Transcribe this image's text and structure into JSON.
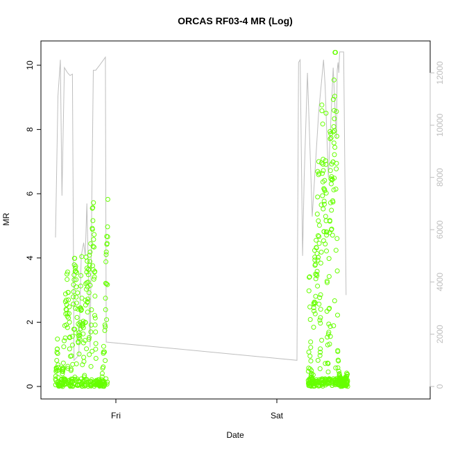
{
  "chart_data": {
    "type": "scatter",
    "title": "ORCAS RF03-4 MR (Log)",
    "xlabel": "Date",
    "ylabel": "MR",
    "x_tick_labels": [
      "Fri",
      "Sat"
    ],
    "ylim": [
      0,
      10.5
    ],
    "y_ticks": [
      0,
      2,
      4,
      6,
      8,
      10
    ],
    "y2lim": [
      0,
      12500
    ],
    "y2_ticks": [
      0,
      2000,
      4000,
      6000,
      8000,
      10000,
      12000
    ],
    "xlim": [
      -0.413,
      1.473
    ],
    "x_ticks": [
      0,
      1
    ],
    "grid": false,
    "legend": "none",
    "colors": {
      "mr_points": "#66ff00",
      "secondary_line": "#bebebe",
      "axis": "#000000"
    },
    "series": [
      {
        "axis": "left",
        "mark": "open-circle",
        "segments": [
          {
            "x_start": -0.375,
            "x_end": -0.05,
            "samples": [
              [
                0.0,
                0.2
              ],
              [
                0.04,
                1.5
              ],
              [
                0.06,
                0.05
              ],
              [
                0.1,
                0.05
              ],
              [
                0.15,
                0.8
              ],
              [
                0.2,
                3.0
              ],
              [
                0.25,
                3.5
              ],
              [
                0.28,
                1.0
              ],
              [
                0.3,
                0.5
              ],
              [
                0.35,
                3.6
              ],
              [
                0.4,
                3.8
              ],
              [
                0.45,
                1.5
              ],
              [
                0.5,
                4.0
              ],
              [
                0.55,
                0.5
              ],
              [
                0.58,
                4.2
              ],
              [
                0.62,
                3.2
              ],
              [
                0.66,
                4.5
              ],
              [
                0.7,
                5.5
              ],
              [
                0.72,
                5.9
              ],
              [
                0.75,
                3.5
              ],
              [
                0.78,
                0.2
              ],
              [
                0.83,
                0.05
              ],
              [
                0.88,
                0.05
              ],
              [
                0.92,
                1.2
              ],
              [
                0.95,
                2.0
              ],
              [
                0.97,
                4.5
              ],
              [
                1.0,
                5.5
              ]
            ]
          },
          {
            "x_start": 1.195,
            "x_end": 1.44,
            "samples": [
              [
                0.0,
                0.3
              ],
              [
                0.03,
                4.6
              ],
              [
                0.06,
                1.5
              ],
              [
                0.09,
                0.3
              ],
              [
                0.12,
                0.2
              ],
              [
                0.15,
                3.5
              ],
              [
                0.2,
                5.0
              ],
              [
                0.25,
                6.5
              ],
              [
                0.28,
                7.2
              ],
              [
                0.3,
                0.4
              ],
              [
                0.35,
                9.7
              ],
              [
                0.4,
                5.5
              ],
              [
                0.45,
                8.0
              ],
              [
                0.5,
                0.5
              ],
              [
                0.55,
                7.5
              ],
              [
                0.6,
                6.8
              ],
              [
                0.65,
                9.5
              ],
              [
                0.7,
                10.4
              ],
              [
                0.72,
                8.5
              ],
              [
                0.75,
                1.0
              ],
              [
                0.8,
                0.3
              ],
              [
                0.85,
                0.2
              ],
              [
                0.9,
                0.1
              ],
              [
                0.95,
                0.3
              ],
              [
                1.0,
                0.5
              ]
            ]
          }
        ]
      },
      {
        "axis": "right",
        "mark": "line",
        "values": [
          [
            -0.375,
            5700
          ],
          [
            -0.36,
            11100
          ],
          [
            -0.345,
            12500
          ],
          [
            -0.335,
            7300
          ],
          [
            -0.32,
            12200
          ],
          [
            -0.3,
            12000
          ],
          [
            -0.285,
            11900
          ],
          [
            -0.27,
            11950
          ],
          [
            -0.26,
            1000
          ],
          [
            -0.23,
            1200
          ],
          [
            -0.215,
            5000
          ],
          [
            -0.2,
            5500
          ],
          [
            -0.19,
            5000
          ],
          [
            -0.18,
            7000
          ],
          [
            -0.16,
            1500
          ],
          [
            -0.14,
            12100
          ],
          [
            -0.125,
            12100
          ],
          [
            -0.1,
            12300
          ],
          [
            -0.065,
            12600
          ],
          [
            -0.06,
            1700
          ],
          [
            1.125,
            1000
          ],
          [
            1.135,
            12400
          ],
          [
            1.145,
            12500
          ],
          [
            1.15,
            10000
          ],
          [
            1.16,
            5000
          ],
          [
            1.17,
            8000
          ],
          [
            1.19,
            12000
          ],
          [
            1.22,
            6500
          ],
          [
            1.26,
            10500
          ],
          [
            1.29,
            12500
          ],
          [
            1.3,
            11500
          ],
          [
            1.32,
            8000
          ],
          [
            1.35,
            12200
          ],
          [
            1.37,
            9500
          ],
          [
            1.375,
            12100
          ],
          [
            1.38,
            12400
          ],
          [
            1.385,
            12000
          ],
          [
            1.39,
            12800
          ],
          [
            1.415,
            12800
          ],
          [
            1.43,
            3500
          ]
        ]
      }
    ]
  }
}
